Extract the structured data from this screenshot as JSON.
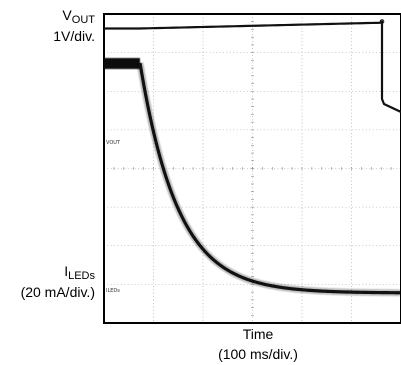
{
  "chart_data": {
    "type": "line",
    "x_axis": {
      "label": "Time",
      "scale": "(100 ms/div.)"
    },
    "channels": [
      {
        "name_main": "V",
        "name_sub": "OUT",
        "scale": "1V/div.",
        "marker": "VOUT",
        "color": "#111111"
      },
      {
        "name_main": "I",
        "name_sub": "LEDs",
        "scale": "(20 mA/div.)",
        "marker": "ILEDs",
        "color": "#111111"
      }
    ],
    "grid": true,
    "divisions": {
      "x": 6,
      "y": 8
    }
  }
}
